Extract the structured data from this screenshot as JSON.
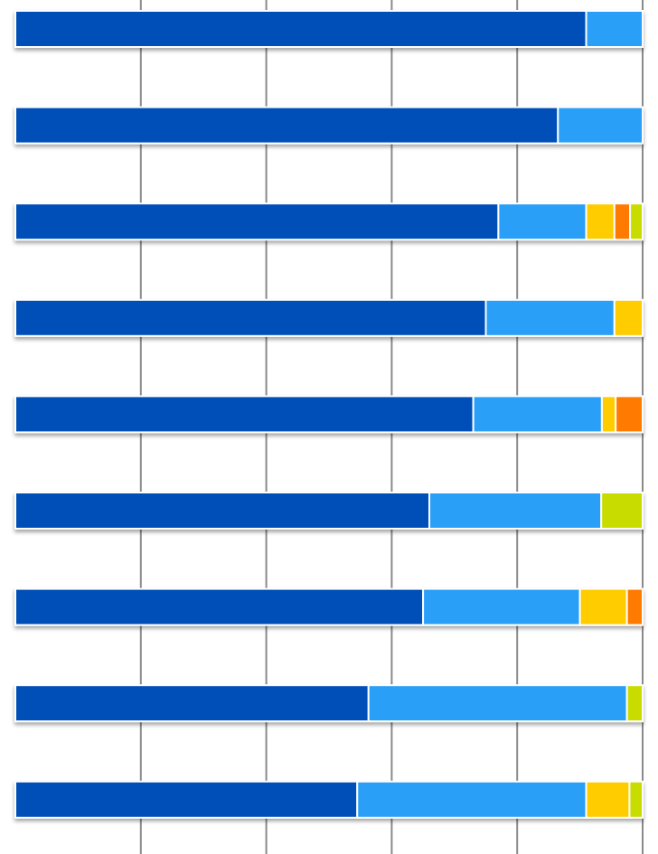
{
  "chart_data": {
    "type": "stacked-bar",
    "orientation": "horizontal",
    "xlim": [
      0,
      100
    ],
    "xticks": [
      20,
      40,
      60,
      80,
      100
    ],
    "grid": true,
    "series": [
      {
        "color": "#0050b9",
        "values": [
          91,
          86.5,
          77,
          75,
          73,
          66,
          65,
          56.3,
          54.5
        ]
      },
      {
        "color": "#2a9ff7",
        "values": [
          9,
          13.5,
          14,
          20.5,
          20.5,
          27.4,
          25,
          41.2,
          36.5
        ]
      },
      {
        "color": "#ffcc00",
        "values": [
          0,
          0,
          4.5,
          4.5,
          2.2,
          0,
          7.5,
          0,
          6.9
        ]
      },
      {
        "color": "#ff7a00",
        "values": [
          0,
          0,
          2.5,
          0,
          4.3,
          0,
          2.5,
          0,
          0
        ]
      },
      {
        "color": "#c8dc00",
        "values": [
          0,
          0,
          2,
          0,
          0,
          6.6,
          0,
          2.5,
          2.1
        ]
      }
    ]
  }
}
